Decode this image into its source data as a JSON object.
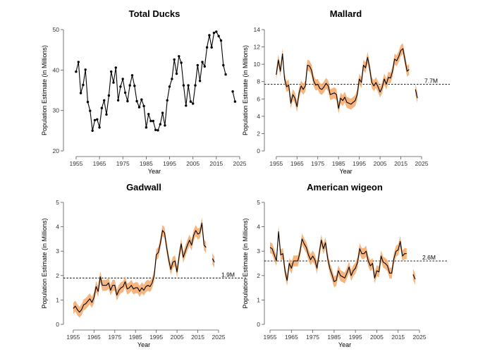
{
  "chart_data": [
    {
      "type": "line",
      "title": "Total Ducks",
      "xlabel": "Year",
      "ylabel": "Population Estimate (in Millions)",
      "xlim": [
        1952,
        2025
      ],
      "ylim": [
        20,
        50
      ],
      "xticks": [
        1955,
        1965,
        1975,
        1985,
        1995,
        2005,
        2015,
        2025
      ],
      "yticks": [
        20,
        30,
        40,
        50
      ],
      "markers": true,
      "band": false,
      "ref_line": null,
      "series": [
        {
          "x": [
            1955,
            1956,
            1957,
            1958,
            1959,
            1960,
            1961,
            1962,
            1963,
            1964,
            1965,
            1966,
            1967,
            1968,
            1969,
            1970,
            1971,
            1972,
            1973,
            1974,
            1975,
            1976,
            1977,
            1978,
            1979,
            1980,
            1981,
            1982,
            1983,
            1984,
            1985,
            1986,
            1987,
            1988,
            1989,
            1990,
            1991,
            1992,
            1993,
            1994,
            1995,
            1996,
            1997,
            1998,
            1999,
            2000,
            2001,
            2002,
            2003,
            2004,
            2005,
            2006,
            2007,
            2008,
            2009,
            2010,
            2011,
            2012,
            2013,
            2014,
            2015,
            2016,
            2017,
            2018,
            2019
          ],
          "y": [
            39.6,
            42.0,
            34.3,
            36.3,
            40.1,
            32.1,
            29.9,
            25.0,
            27.6,
            27.8,
            25.8,
            30.6,
            32.5,
            29.0,
            33.7,
            39.6,
            36.9,
            40.6,
            32.5,
            35.9,
            37.8,
            34.4,
            32.3,
            36.2,
            38.7,
            36.1,
            32.3,
            30.8,
            32.7,
            31.1,
            25.8,
            29.1,
            27.4,
            27.4,
            25.2,
            25.1,
            26.6,
            29.4,
            26.3,
            32.5,
            35.9,
            37.8,
            42.6,
            39.1,
            43.4,
            41.8,
            36.2,
            31.2,
            36.2,
            32.2,
            31.7,
            36.2,
            41.2,
            37.3,
            42.0,
            40.9,
            45.6,
            48.6,
            45.6,
            49.2,
            49.5,
            48.4,
            47.3,
            41.2,
            38.9
          ]
        },
        {
          "x": [
            2022,
            2023
          ],
          "y": [
            34.7,
            32.2
          ]
        }
      ]
    },
    {
      "type": "line",
      "title": "Mallard",
      "xlabel": "Year",
      "ylabel": "Population Estimate (in Millions)",
      "xlim": [
        1952,
        2025
      ],
      "ylim": [
        0,
        14
      ],
      "xticks": [
        1955,
        1965,
        1975,
        1985,
        1995,
        2005,
        2015,
        2025
      ],
      "yticks": [
        0,
        2,
        4,
        6,
        8,
        10,
        12,
        14
      ],
      "markers": false,
      "band": true,
      "ref_line": {
        "y": 7.7,
        "label": "7.7M"
      },
      "series": [
        {
          "x": [
            1955,
            1956,
            1957,
            1958,
            1959,
            1960,
            1961,
            1962,
            1963,
            1964,
            1965,
            1966,
            1967,
            1968,
            1969,
            1970,
            1971,
            1972,
            1973,
            1974,
            1975,
            1976,
            1977,
            1978,
            1979,
            1980,
            1981,
            1982,
            1983,
            1984,
            1985,
            1986,
            1987,
            1988,
            1989,
            1990,
            1991,
            1992,
            1993,
            1994,
            1995,
            1996,
            1997,
            1998,
            1999,
            2000,
            2001,
            2002,
            2003,
            2004,
            2005,
            2006,
            2007,
            2008,
            2009,
            2010,
            2011,
            2012,
            2013,
            2014,
            2015,
            2016,
            2017,
            2018,
            2019
          ],
          "y": [
            8.8,
            10.5,
            9.2,
            11.2,
            8.3,
            7.4,
            7.6,
            5.5,
            6.5,
            6.1,
            5.1,
            6.7,
            7.5,
            7.1,
            7.5,
            9.9,
            9.8,
            9.3,
            8.1,
            7.6,
            7.7,
            7.2,
            7.1,
            7.4,
            7.8,
            7.5,
            6.5,
            6.6,
            6.7,
            6.5,
            4.9,
            6.1,
            5.8,
            6.2,
            5.6,
            5.5,
            5.4,
            5.6,
            5.8,
            6.5,
            8.3,
            7.9,
            9.9,
            9.6,
            10.8,
            9.5,
            7.9,
            7.5,
            7.9,
            7.4,
            6.8,
            7.3,
            8.3,
            7.7,
            8.5,
            8.4,
            9.2,
            10.6,
            10.4,
            10.9,
            11.6,
            11.8,
            10.5,
            9.2,
            9.4
          ]
        },
        {
          "x": [
            2022,
            2023
          ],
          "y": [
            7.1,
            6.1
          ]
        }
      ]
    },
    {
      "type": "line",
      "title": "Gadwall",
      "xlabel": "Year",
      "ylabel": "Population Estimate (in Millions)",
      "xlim": [
        1953,
        2025
      ],
      "ylim": [
        0,
        5
      ],
      "xticks": [
        1955,
        1965,
        1975,
        1985,
        1995,
        2005,
        2015,
        2025
      ],
      "yticks": [
        0,
        1,
        2,
        3,
        4,
        5
      ],
      "markers": false,
      "band": true,
      "ref_line": {
        "y": 1.9,
        "label": "1.9M"
      },
      "series": [
        {
          "x": [
            1955,
            1956,
            1957,
            1958,
            1959,
            1960,
            1961,
            1962,
            1963,
            1964,
            1965,
            1966,
            1967,
            1968,
            1969,
            1970,
            1971,
            1972,
            1973,
            1974,
            1975,
            1976,
            1977,
            1978,
            1979,
            1980,
            1981,
            1982,
            1983,
            1984,
            1985,
            1986,
            1987,
            1988,
            1989,
            1990,
            1991,
            1992,
            1993,
            1994,
            1995,
            1996,
            1997,
            1998,
            1999,
            2000,
            2001,
            2002,
            2003,
            2004,
            2005,
            2006,
            2007,
            2008,
            2009,
            2010,
            2011,
            2012,
            2013,
            2014,
            2015,
            2016,
            2017,
            2018,
            2019
          ],
          "y": [
            0.65,
            0.75,
            0.6,
            0.5,
            0.6,
            0.8,
            0.85,
            0.95,
            1.05,
            0.9,
            1.1,
            1.55,
            1.35,
            1.95,
            1.6,
            1.6,
            1.6,
            1.7,
            1.4,
            1.6,
            1.6,
            1.2,
            1.4,
            1.5,
            1.55,
            1.75,
            1.45,
            1.5,
            1.6,
            1.45,
            1.5,
            1.5,
            1.35,
            1.5,
            1.4,
            1.55,
            1.6,
            1.55,
            1.7,
            2.0,
            2.85,
            2.95,
            3.35,
            3.85,
            3.75,
            3.15,
            2.65,
            2.25,
            2.55,
            2.6,
            2.15,
            2.8,
            3.3,
            2.75,
            3.0,
            3.25,
            3.45,
            3.25,
            3.65,
            3.85,
            3.7,
            3.75,
            4.15,
            3.25,
            3.15
          ]
        },
        {
          "x": [
            2022,
            2023
          ],
          "y": [
            2.7,
            2.55
          ]
        }
      ]
    },
    {
      "type": "line",
      "title": "American wigeon",
      "xlabel": "Year",
      "ylabel": "Population Estimate (in Millions)",
      "xlim": [
        1955,
        2025
      ],
      "ylim": [
        0,
        5
      ],
      "xticks": [
        1955,
        1965,
        1975,
        1985,
        1995,
        2005,
        2015,
        2025
      ],
      "yticks": [
        0,
        1,
        2,
        3,
        4,
        5
      ],
      "markers": false,
      "band": true,
      "ref_line": {
        "y": 2.6,
        "label": "2.6M"
      },
      "series": [
        {
          "x": [
            1955,
            1956,
            1957,
            1958,
            1959,
            1960,
            1961,
            1962,
            1963,
            1964,
            1965,
            1966,
            1967,
            1968,
            1969,
            1970,
            1971,
            1972,
            1973,
            1974,
            1975,
            1976,
            1977,
            1978,
            1979,
            1980,
            1981,
            1982,
            1983,
            1984,
            1985,
            1986,
            1987,
            1988,
            1989,
            1990,
            1991,
            1992,
            1993,
            1994,
            1995,
            1996,
            1997,
            1998,
            1999,
            2000,
            2001,
            2002,
            2003,
            2004,
            2005,
            2006,
            2007,
            2008,
            2009,
            2010,
            2011,
            2012,
            2013,
            2014,
            2015,
            2016,
            2017,
            2018,
            2019
          ],
          "y": [
            3.15,
            3.1,
            2.85,
            2.6,
            3.8,
            2.85,
            2.9,
            2.2,
            1.8,
            2.5,
            2.3,
            2.6,
            2.6,
            2.6,
            2.95,
            3.5,
            3.3,
            3.15,
            2.85,
            2.65,
            2.8,
            2.65,
            2.3,
            2.9,
            3.45,
            3.1,
            3.35,
            2.7,
            2.3,
            2.05,
            1.75,
            1.8,
            2.2,
            2.0,
            1.95,
            1.9,
            2.1,
            2.35,
            2.0,
            2.2,
            2.3,
            2.55,
            3.1,
            2.9,
            2.9,
            3.0,
            2.6,
            2.4,
            2.5,
            1.9,
            2.2,
            2.15,
            2.8,
            2.55,
            2.5,
            2.4,
            2.1,
            2.1,
            2.7,
            3.0,
            3.05,
            3.4,
            2.8,
            2.9,
            2.9
          ]
        },
        {
          "x": [
            2022,
            2023
          ],
          "y": [
            2.05,
            1.85
          ]
        }
      ]
    }
  ]
}
